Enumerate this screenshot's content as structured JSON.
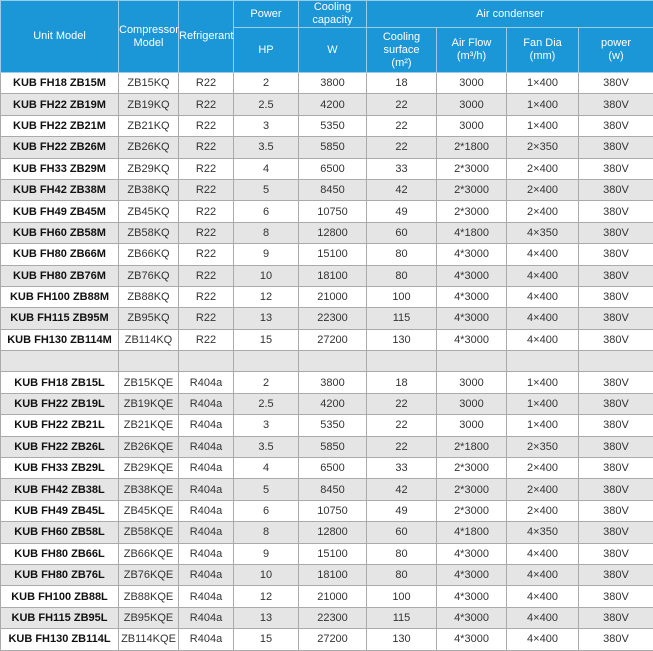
{
  "header": {
    "unit_model": "Unit Model",
    "compressor_model": "Compressor Model",
    "refrigerant": "Refrigerant",
    "power": "Power",
    "cooling_capacity": "Cooling capacity",
    "air_condenser": "Air condenser",
    "hp": "HP",
    "w": "W",
    "cooling_surface": "Cooling surface",
    "cooling_surface_unit": "(m²)",
    "air_flow": "Air Flow",
    "air_flow_unit": "(m³/h)",
    "fan_dia": "Fan Dia",
    "fan_dia_unit": "(mm)",
    "cond_power": "power",
    "cond_power_unit": "(w)"
  },
  "colors": {
    "header_bg": "#1b96d6",
    "alt_row": "#e5e5e5"
  },
  "rows_r22": [
    [
      "KUB FH18  ZB15M",
      "ZB15KQ",
      "R22",
      "2",
      "3800",
      "18",
      "3000",
      "1×400",
      "380V"
    ],
    [
      "KUB FH22  ZB19M",
      "ZB19KQ",
      "R22",
      "2.5",
      "4200",
      "22",
      "3000",
      "1×400",
      "380V"
    ],
    [
      "KUB FH22  ZB21M",
      "ZB21KQ",
      "R22",
      "3",
      "5350",
      "22",
      "3000",
      "1×400",
      "380V"
    ],
    [
      "KUB FH22  ZB26M",
      "ZB26KQ",
      "R22",
      "3.5",
      "5850",
      "22",
      "2*1800",
      "2×350",
      "380V"
    ],
    [
      "KUB FH33  ZB29M",
      "ZB29KQ",
      "R22",
      "4",
      "6500",
      "33",
      "2*3000",
      "2×400",
      "380V"
    ],
    [
      "KUB FH42  ZB38M",
      "ZB38KQ",
      "R22",
      "5",
      "8450",
      "42",
      "2*3000",
      "2×400",
      "380V"
    ],
    [
      "KUB FH49  ZB45M",
      "ZB45KQ",
      "R22",
      "6",
      "10750",
      "49",
      "2*3000",
      "2×400",
      "380V"
    ],
    [
      "KUB FH60  ZB58M",
      "ZB58KQ",
      "R22",
      "8",
      "12800",
      "60",
      "4*1800",
      "4×350",
      "380V"
    ],
    [
      "KUB FH80  ZB66M",
      "ZB66KQ",
      "R22",
      "9",
      "15100",
      "80",
      "4*3000",
      "4×400",
      "380V"
    ],
    [
      "KUB FH80  ZB76M",
      "ZB76KQ",
      "R22",
      "10",
      "18100",
      "80",
      "4*3000",
      "4×400",
      "380V"
    ],
    [
      "KUB FH100  ZB88M",
      "ZB88KQ",
      "R22",
      "12",
      "21000",
      "100",
      "4*3000",
      "4×400",
      "380V"
    ],
    [
      "KUB FH115  ZB95M",
      "ZB95KQ",
      "R22",
      "13",
      "22300",
      "115",
      "4*3000",
      "4×400",
      "380V"
    ],
    [
      "KUB FH130  ZB114M",
      "ZB114KQ",
      "R22",
      "15",
      "27200",
      "130",
      "4*3000",
      "4×400",
      "380V"
    ]
  ],
  "rows_r404a": [
    [
      "KUB FH18  ZB15L",
      "ZB15KQE",
      "R404a",
      "2",
      "3800",
      "18",
      "3000",
      "1×400",
      "380V"
    ],
    [
      "KUB FH22  ZB19L",
      "ZB19KQE",
      "R404a",
      "2.5",
      "4200",
      "22",
      "3000",
      "1×400",
      "380V"
    ],
    [
      "KUB FH22  ZB21L",
      "ZB21KQE",
      "R404a",
      "3",
      "5350",
      "22",
      "3000",
      "1×400",
      "380V"
    ],
    [
      "KUB FH22  ZB26L",
      "ZB26KQE",
      "R404a",
      "3.5",
      "5850",
      "22",
      "2*1800",
      "2×350",
      "380V"
    ],
    [
      "KUB FH33  ZB29L",
      "ZB29KQE",
      "R404a",
      "4",
      "6500",
      "33",
      "2*3000",
      "2×400",
      "380V"
    ],
    [
      "KUB FH42  ZB38L",
      "ZB38KQE",
      "R404a",
      "5",
      "8450",
      "42",
      "2*3000",
      "2×400",
      "380V"
    ],
    [
      "KUB FH49  ZB45L",
      "ZB45KQE",
      "R404a",
      "6",
      "10750",
      "49",
      "2*3000",
      "2×400",
      "380V"
    ],
    [
      "KUB FH60  ZB58L",
      "ZB58KQE",
      "R404a",
      "8",
      "12800",
      "60",
      "4*1800",
      "4×350",
      "380V"
    ],
    [
      "KUB FH80  ZB66L",
      "ZB66KQE",
      "R404a",
      "9",
      "15100",
      "80",
      "4*3000",
      "4×400",
      "380V"
    ],
    [
      "KUB FH80  ZB76L",
      "ZB76KQE",
      "R404a",
      "10",
      "18100",
      "80",
      "4*3000",
      "4×400",
      "380V"
    ],
    [
      "KUB FH100  ZB88L",
      "ZB88KQE",
      "R404a",
      "12",
      "21000",
      "100",
      "4*3000",
      "4×400",
      "380V"
    ],
    [
      "KUB FH115  ZB95L",
      "ZB95KQE",
      "R404a",
      "13",
      "22300",
      "115",
      "4*3000",
      "4×400",
      "380V"
    ],
    [
      "KUB FH130  ZB114L",
      "ZB114KQE",
      "R404a",
      "15",
      "27200",
      "130",
      "4*3000",
      "4×400",
      "380V"
    ]
  ]
}
